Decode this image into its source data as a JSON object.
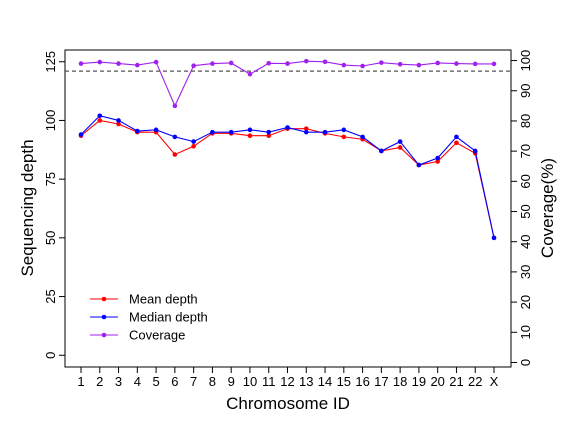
{
  "chart_data": {
    "type": "line",
    "xlabel": "Chromosome ID",
    "ylabel": "Sequencing depth",
    "ylabel_right": "Coverage(%)",
    "categories": [
      "1",
      "2",
      "3",
      "4",
      "5",
      "6",
      "7",
      "8",
      "9",
      "10",
      "11",
      "12",
      "13",
      "14",
      "15",
      "16",
      "17",
      "18",
      "19",
      "20",
      "21",
      "22",
      "X"
    ],
    "ylim": [
      -5,
      130
    ],
    "yticks": [
      0,
      25,
      50,
      75,
      100,
      125
    ],
    "ylim_right": [
      -1.5,
      103.5
    ],
    "yticks_right": [
      0,
      10,
      20,
      30,
      40,
      50,
      60,
      70,
      80,
      90,
      100
    ],
    "reference_line_right": 96.5,
    "series": [
      {
        "name": "Mean depth",
        "axis": "left",
        "color": "#ff0000",
        "values": [
          93.5,
          100,
          98.5,
          95,
          95,
          85.5,
          89,
          94.5,
          94.5,
          93.5,
          93.5,
          96.5,
          96.5,
          94.5,
          93,
          92,
          87,
          88.5,
          81,
          82.5,
          90.5,
          86,
          50
        ]
      },
      {
        "name": "Median depth",
        "axis": "left",
        "color": "#0000ff",
        "values": [
          94,
          102,
          100,
          95.5,
          96,
          93,
          91,
          95,
          95,
          96,
          95,
          97,
          95,
          95,
          96,
          93,
          87,
          91,
          81,
          84,
          93,
          87,
          50
        ]
      },
      {
        "name": "Coverage",
        "axis": "right",
        "color": "#a020f0",
        "values": [
          99,
          99.5,
          99,
          98.5,
          99.5,
          85,
          98.3,
          99,
          99.2,
          95.5,
          99.1,
          99,
          99.8,
          99.6,
          98.5,
          98.2,
          99.3,
          98.8,
          98.5,
          99.2,
          99,
          98.9,
          98.9
        ]
      }
    ],
    "legend_position": "bottom-left",
    "grid": false
  }
}
